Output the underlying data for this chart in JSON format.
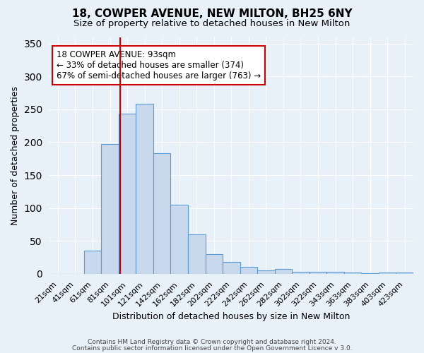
{
  "title": "18, COWPER AVENUE, NEW MILTON, BH25 6NY",
  "subtitle": "Size of property relative to detached houses in New Milton",
  "xlabel": "Distribution of detached houses by size in New Milton",
  "ylabel": "Number of detached properties",
  "categories": [
    "21sqm",
    "41sqm",
    "61sqm",
    "81sqm",
    "101sqm",
    "121sqm",
    "142sqm",
    "162sqm",
    "182sqm",
    "202sqm",
    "222sqm",
    "242sqm",
    "262sqm",
    "282sqm",
    "302sqm",
    "322sqm",
    "343sqm",
    "363sqm",
    "383sqm",
    "403sqm",
    "423sqm"
  ],
  "values": [
    0,
    0,
    35,
    197,
    243,
    258,
    183,
    105,
    60,
    30,
    18,
    10,
    5,
    7,
    3,
    3,
    3,
    2,
    1,
    2,
    2
  ],
  "bar_color": "#c9d9ed",
  "bar_edge_color": "#5b9bd5",
  "background_color": "#e8f0f8",
  "grid_color": "#ffffff",
  "vline_color": "#cc0000",
  "vline_x": 3.6,
  "annotation_title": "18 COWPER AVENUE: 93sqm",
  "annotation_line1": "← 33% of detached houses are smaller (374)",
  "annotation_line2": "67% of semi-detached houses are larger (763) →",
  "annotation_box_color": "#ffffff",
  "annotation_box_edge": "#cc0000",
  "ylim": [
    0,
    360
  ],
  "yticks": [
    0,
    50,
    100,
    150,
    200,
    250,
    300,
    350
  ],
  "footer1": "Contains HM Land Registry data © Crown copyright and database right 2024.",
  "footer2": "Contains public sector information licensed under the Open Government Licence v 3.0."
}
